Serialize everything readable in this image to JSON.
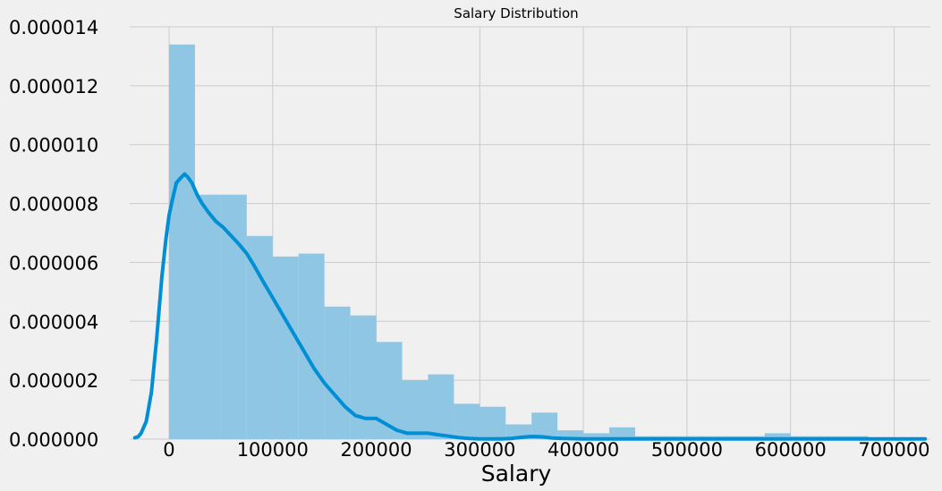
{
  "chart_data": {
    "type": "bar",
    "title": "Salary Distribution",
    "xlabel": "Salary",
    "ylabel": "",
    "xlim": [
      -38000,
      735000
    ],
    "ylim": [
      0,
      1.4e-05
    ],
    "grid": true,
    "x_ticks": [
      0,
      100000,
      200000,
      300000,
      400000,
      500000,
      600000,
      700000
    ],
    "x_tick_labels": [
      "0",
      "100000",
      "200000",
      "300000",
      "400000",
      "500000",
      "600000",
      "700000"
    ],
    "y_ticks": [
      0,
      2e-06,
      4e-06,
      6e-06,
      8e-06,
      1e-05,
      1.2e-05,
      1.4e-05
    ],
    "y_tick_labels": [
      "0.000000",
      "0.000002",
      "0.000004",
      "0.000006",
      "0.000008",
      "0.000010",
      "0.000012",
      "0.000014"
    ],
    "histogram": {
      "bin_start": 0,
      "bin_width": 25000,
      "densities": [
        1.34e-05,
        8.3e-06,
        8.3e-06,
        6.9e-06,
        6.2e-06,
        6.3e-06,
        4.5e-06,
        4.2e-06,
        3.3e-06,
        2e-06,
        2.2e-06,
        1.2e-06,
        1.1e-06,
        5e-07,
        9e-07,
        3e-07,
        2e-07,
        4e-07,
        1e-07,
        1e-07,
        1e-07,
        1e-07,
        1e-07,
        2e-07,
        1e-07,
        1e-07,
        1e-07,
        0,
        5e-08,
        0,
        3e-08,
        0,
        0,
        3e-08,
        0,
        0,
        0,
        0,
        0,
        0,
        0,
        0,
        0,
        0,
        0,
        0,
        0,
        0,
        0,
        0,
        0,
        0,
        0,
        0,
        0,
        0,
        0,
        0,
        0
      ]
    },
    "kde": {
      "x": [
        -33000,
        -30000,
        -27000,
        -22000,
        -17000,
        -12000,
        -7000,
        -3000,
        0,
        3000,
        7000,
        12000,
        15000,
        18000,
        22000,
        27000,
        32000,
        38000,
        45000,
        52000,
        60000,
        68000,
        75000,
        82000,
        90000,
        100000,
        110000,
        120000,
        130000,
        140000,
        150000,
        160000,
        170000,
        180000,
        190000,
        200000,
        210000,
        220000,
        230000,
        240000,
        250000,
        260000,
        270000,
        280000,
        290000,
        300000,
        310000,
        320000,
        330000,
        340000,
        350000,
        360000,
        370000,
        380000,
        400000,
        450000,
        500000,
        550000,
        600000,
        650000,
        700000,
        730000
      ],
      "y": [
        5e-08,
        8e-08,
        2e-07,
        6e-07,
        1.6e-06,
        3.4e-06,
        5.5e-06,
        6.8e-06,
        7.6e-06,
        8.1e-06,
        8.7e-06,
        8.9e-06,
        9e-06,
        8.9e-06,
        8.7e-06,
        8.3e-06,
        8e-06,
        7.7e-06,
        7.4e-06,
        7.2e-06,
        6.9e-06,
        6.6e-06,
        6.3e-06,
        5.9e-06,
        5.4e-06,
        4.8e-06,
        4.2e-06,
        3.6e-06,
        3e-06,
        2.4e-06,
        1.9e-06,
        1.5e-06,
        1.1e-06,
        8e-07,
        7e-07,
        7e-07,
        5e-07,
        3e-07,
        2e-07,
        2e-07,
        2e-07,
        1.5e-07,
        1e-07,
        5e-08,
        2e-08,
        1e-08,
        1e-08,
        1e-08,
        2e-08,
        6e-08,
        9e-08,
        8e-08,
        4e-08,
        2e-08,
        1e-08,
        1e-08,
        1e-08,
        1e-08,
        1e-08,
        1e-08,
        1e-08,
        1e-08
      ]
    },
    "colors": {
      "background": "#f0f0f0",
      "grid": "#cbcbcb",
      "bar": "#8ec6e4",
      "kde_line": "#008fd5"
    }
  }
}
